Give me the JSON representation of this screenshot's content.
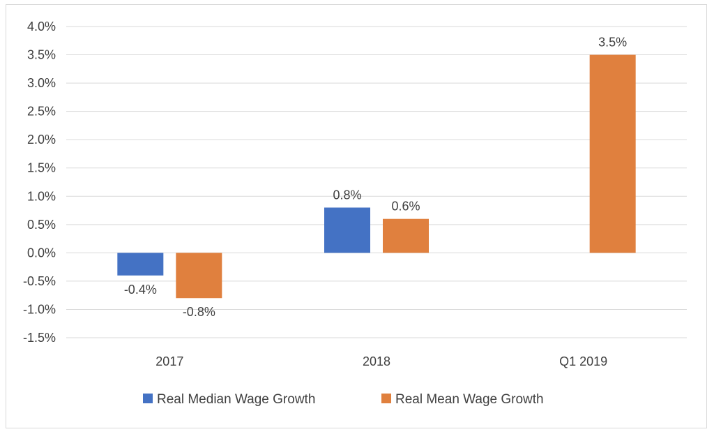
{
  "chart_data": {
    "type": "bar",
    "categories": [
      "2017",
      "2018",
      "Q1 2019"
    ],
    "series": [
      {
        "name": "Real Median Wage Growth",
        "values": [
          -0.4,
          0.8,
          null
        ],
        "labels": [
          "-0.4%",
          "0.8%",
          ""
        ],
        "color": "#4472c4"
      },
      {
        "name": "Real Mean Wage Growth",
        "values": [
          -0.8,
          0.6,
          3.5
        ],
        "labels": [
          "-0.8%",
          "0.6%",
          "3.5%"
        ],
        "color": "#e0803e"
      }
    ],
    "ylim": [
      -1.5,
      4.0
    ],
    "yticks": [
      4.0,
      3.5,
      3.0,
      2.5,
      2.0,
      1.5,
      1.0,
      0.5,
      0.0,
      -0.5,
      -1.0,
      -1.5
    ],
    "ytick_labels": [
      "4.0%",
      "3.5%",
      "3.0%",
      "2.5%",
      "2.0%",
      "1.5%",
      "1.0%",
      "0.5%",
      "0.0%",
      "-0.5%",
      "-1.0%",
      "-1.5%"
    ],
    "title": "",
    "xlabel": "",
    "ylabel": "",
    "grid": true,
    "legend": "bottom",
    "gridline_color": "#d9d9d9"
  }
}
